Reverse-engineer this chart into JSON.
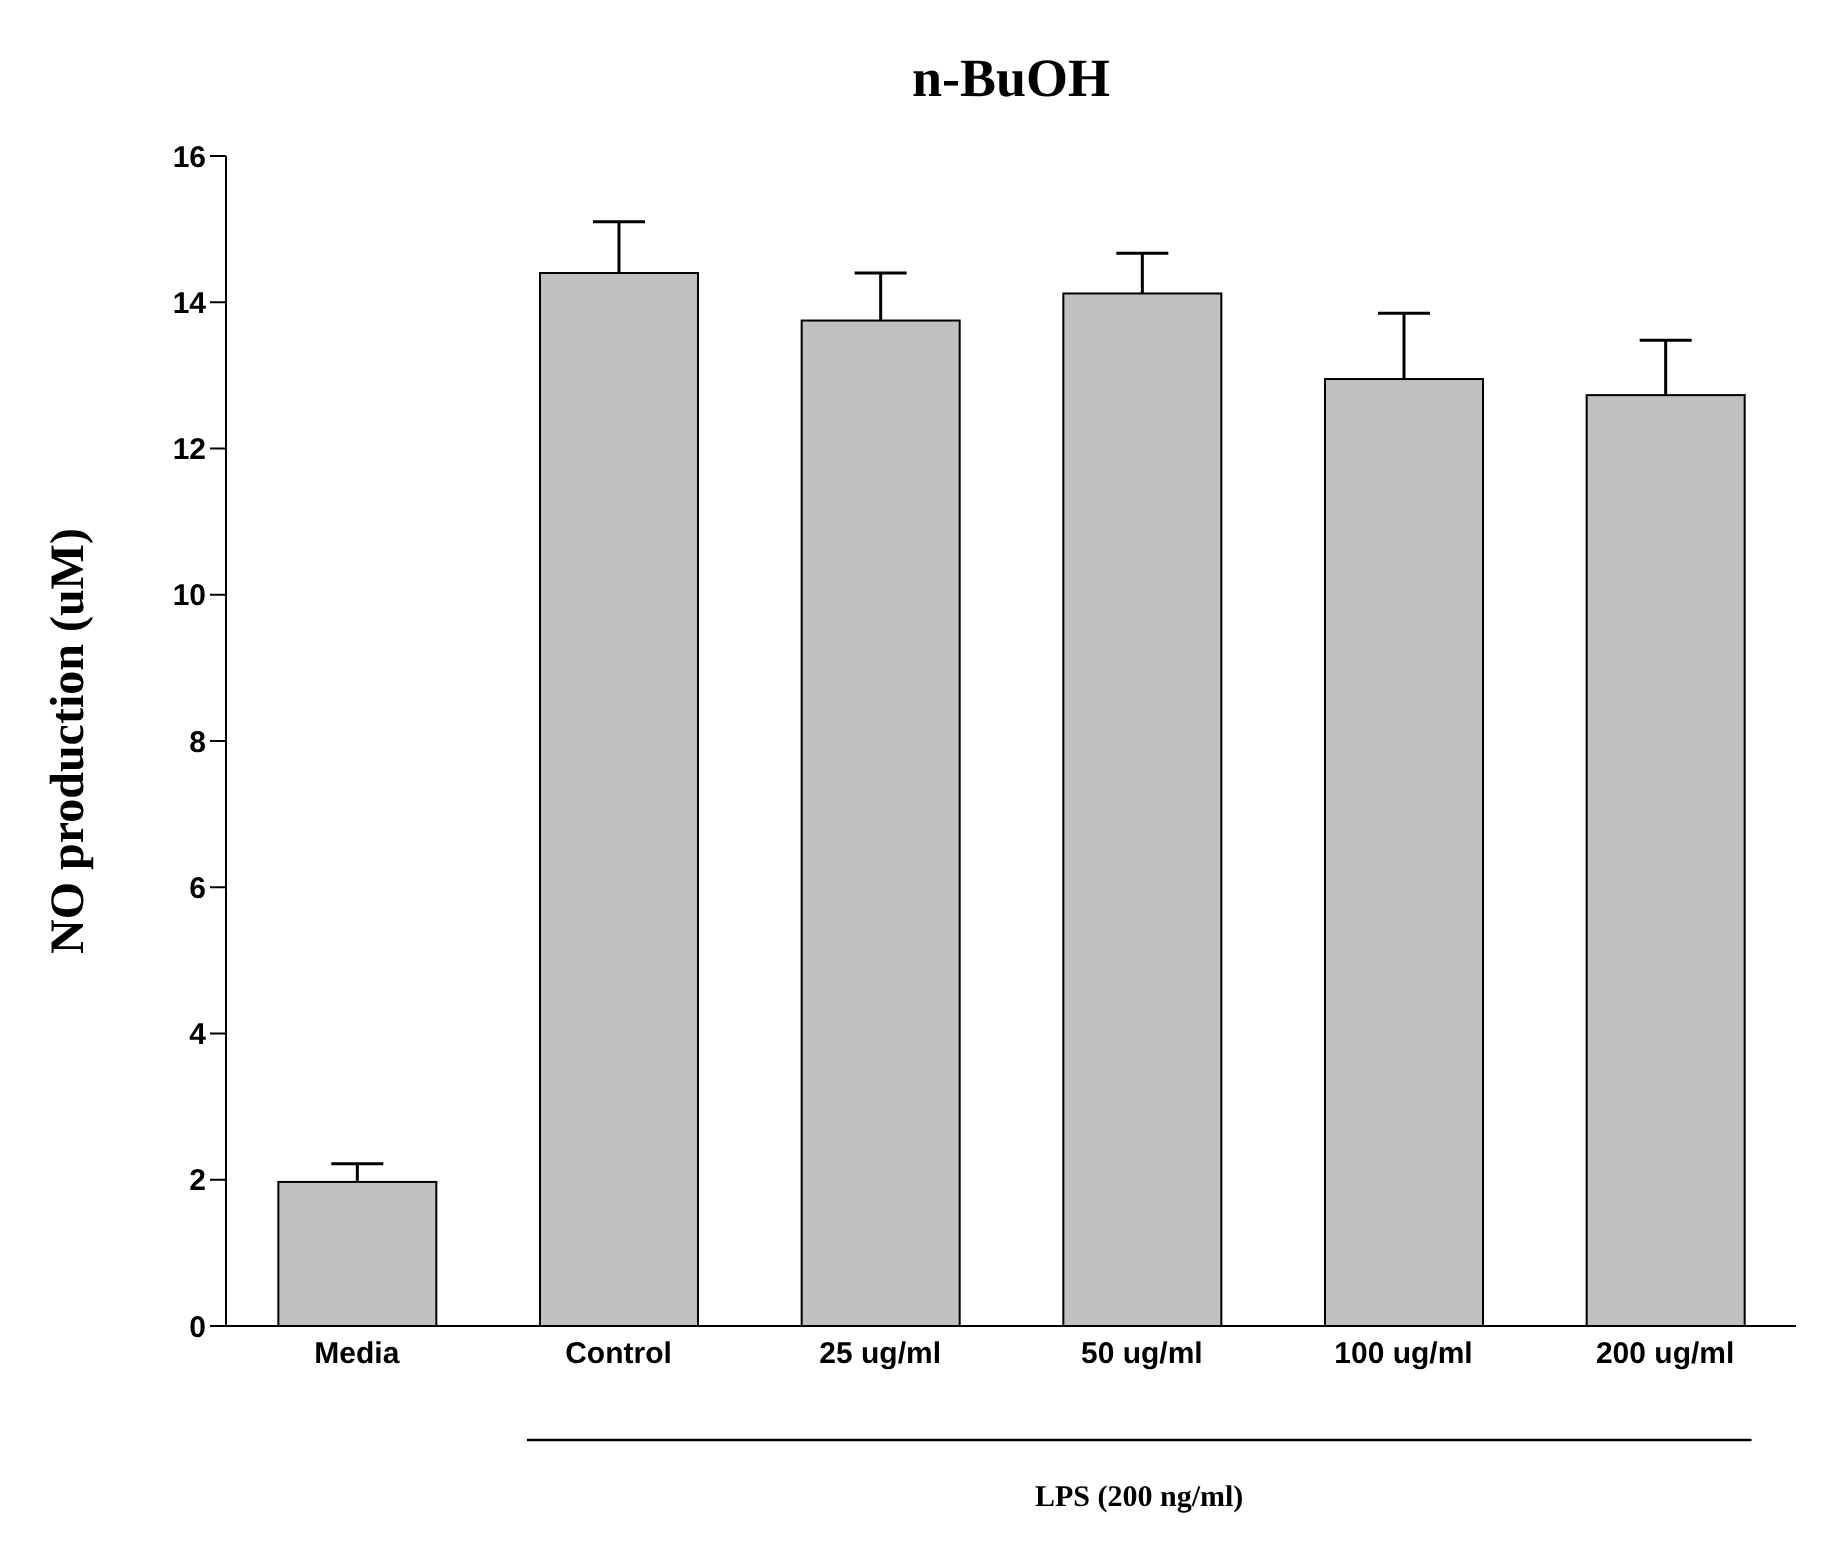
{
  "chart_data": {
    "type": "bar",
    "title": "n-BuOH",
    "ylabel": "NO production (uM)",
    "categories": [
      "Media",
      "Control",
      "25 ug/ml",
      "50 ug/ml",
      "100 ug/ml",
      "200 ug/ml"
    ],
    "values": [
      1.97,
      14.4,
      13.75,
      14.12,
      12.95,
      12.73
    ],
    "errors": [
      [
        1.97,
        2.22
      ],
      [
        14.4,
        15.1
      ],
      [
        13.75,
        14.4
      ],
      [
        14.12,
        14.67
      ],
      [
        12.95,
        13.85
      ],
      [
        12.73,
        13.48
      ]
    ],
    "color": "#c0c0c0",
    "ylim": [
      0,
      16
    ],
    "yticks": [
      0,
      2,
      4,
      6,
      8,
      10,
      12,
      14,
      16
    ],
    "grid": false,
    "annotations": [
      "LPS (200 ng/ml)"
    ]
  }
}
